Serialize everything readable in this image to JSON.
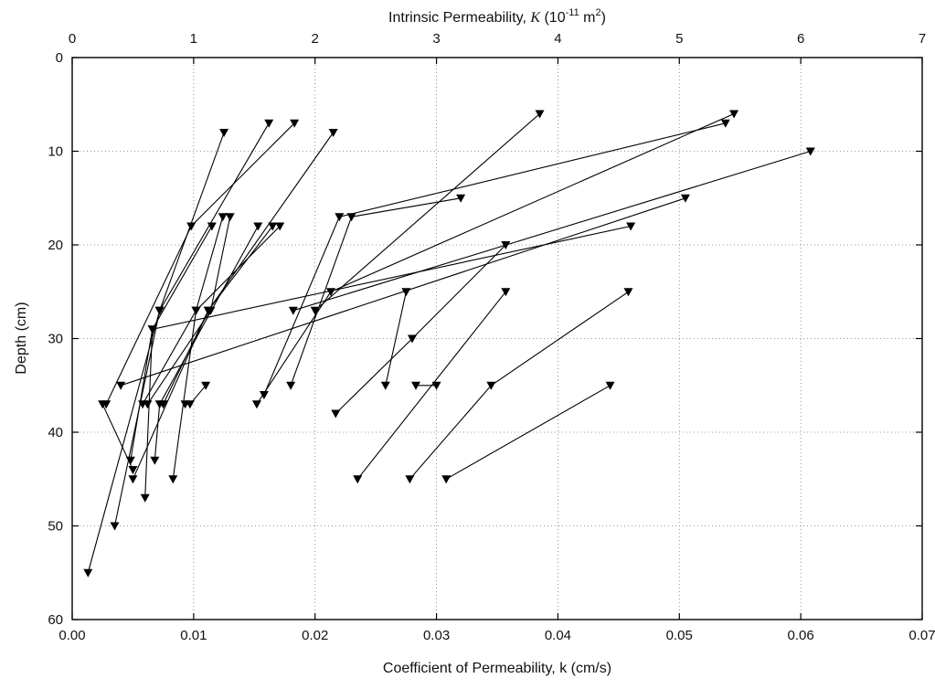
{
  "chart_data": {
    "type": "line",
    "title": "",
    "xlabel": "Coefficient of Permeability, k (cm/s)",
    "ylabel": "Depth (cm)",
    "x2label": {
      "prefix": "Intrinsic Permeability, ",
      "symbol": "K",
      "unit_open": " (10",
      "exponent1": "-11",
      "unit_mid": " m",
      "exponent2": "2",
      "unit_close": ")"
    },
    "xlim": [
      0,
      0.07
    ],
    "x2lim": [
      0,
      7
    ],
    "ylim": [
      60,
      0
    ],
    "y_inverted": true,
    "x_tick_labels": [
      "0.00",
      "0.01",
      "0.02",
      "0.03",
      "0.04",
      "0.05",
      "0.06",
      "0.07"
    ],
    "x2_tick_labels": [
      "0",
      "1",
      "2",
      "3",
      "4",
      "5",
      "6",
      "7"
    ],
    "y_tick_labels": [
      "0",
      "10",
      "20",
      "30",
      "40",
      "50",
      "60"
    ],
    "grid": true,
    "marker": "triangle-down",
    "series": [
      {
        "x": [
          0.0013,
          0.0072,
          0.0125
        ],
        "y": [
          55,
          27,
          8
        ]
      },
      {
        "x": [
          0.0035,
          0.0072,
          0.0162
        ],
        "y": [
          50,
          27,
          7
        ]
      },
      {
        "x": [
          0.0028,
          0.0098,
          0.0183
        ],
        "y": [
          37,
          18,
          7
        ]
      },
      {
        "x": [
          0.005,
          0.0112,
          0.0215
        ],
        "y": [
          45,
          27,
          8
        ]
      },
      {
        "x": [
          0.0058,
          0.0102,
          0.0124
        ],
        "y": [
          37,
          27,
          17
        ]
      },
      {
        "x": [
          0.0062,
          0.0114,
          0.013
        ],
        "y": [
          37,
          27,
          17
        ]
      },
      {
        "x": [
          0.006,
          0.0066,
          0.0115
        ],
        "y": [
          47,
          29,
          18
        ]
      },
      {
        "x": [
          0.0068,
          0.0072,
          0.0153
        ],
        "y": [
          43,
          37,
          18
        ]
      },
      {
        "x": [
          0.0075,
          0.0112,
          0.0165
        ],
        "y": [
          37,
          27,
          18
        ]
      },
      {
        "x": [
          0.0083,
          0.0102,
          0.0171
        ],
        "y": [
          45,
          27,
          18
        ]
      },
      {
        "x": [
          0.0093,
          0.0097,
          0.011
        ],
        "y": [
          37,
          37,
          35
        ]
      },
      {
        "x": [
          0.0048,
          0.0066,
          0.046
        ],
        "y": [
          43,
          29,
          18
        ]
      },
      {
        "x": [
          0.0025,
          0.005
        ],
        "y": [
          37,
          44
        ]
      },
      {
        "x": [
          0.004,
          0.0505
        ],
        "y": [
          35,
          15
        ]
      },
      {
        "x": [
          0.0152,
          0.0213,
          0.0545
        ],
        "y": [
          37,
          25,
          6
        ]
      },
      {
        "x": [
          0.0158,
          0.022,
          0.0538
        ],
        "y": [
          36,
          17,
          7
        ]
      },
      {
        "x": [
          0.018,
          0.023,
          0.032
        ],
        "y": [
          35,
          17,
          15
        ]
      },
      {
        "x": [
          0.0182,
          0.0608
        ],
        "y": [
          27,
          10
        ]
      },
      {
        "x": [
          0.02,
          0.0385
        ],
        "y": [
          27,
          6
        ]
      },
      {
        "x": [
          0.0217,
          0.028,
          0.0357
        ],
        "y": [
          38,
          30,
          20
        ]
      },
      {
        "x": [
          0.0235,
          0.0357
        ],
        "y": [
          45,
          25
        ]
      },
      {
        "x": [
          0.0258,
          0.0275
        ],
        "y": [
          35,
          25
        ]
      },
      {
        "x": [
          0.0283,
          0.03
        ],
        "y": [
          35,
          35
        ]
      },
      {
        "x": [
          0.0278,
          0.0345,
          0.0458
        ],
        "y": [
          45,
          35,
          25
        ]
      },
      {
        "x": [
          0.0308,
          0.0443
        ],
        "y": [
          45,
          35
        ]
      }
    ]
  }
}
